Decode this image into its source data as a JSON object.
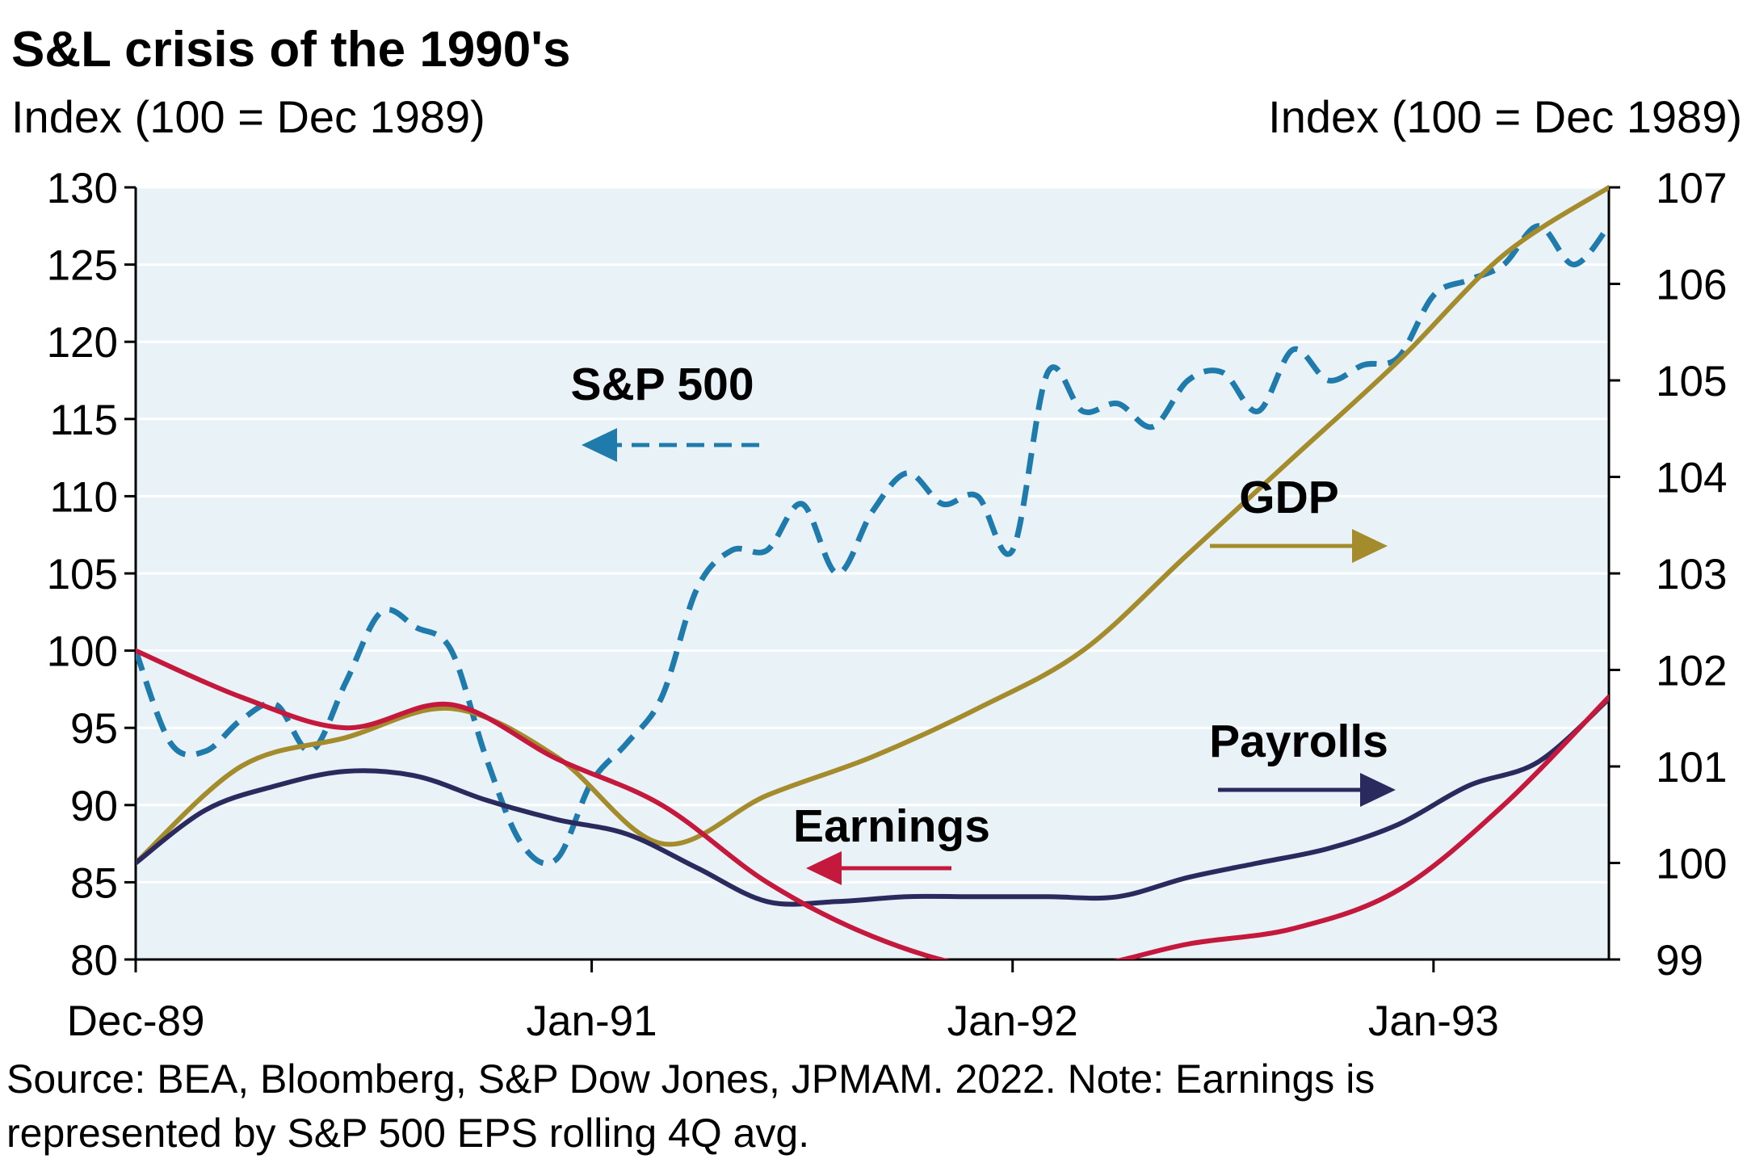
{
  "chart_data": {
    "type": "line",
    "title": "S&L crisis of the 1990's",
    "footnote_lines": [
      "Source: BEA, Bloomberg, S&P Dow Jones, JPMAM. 2022. Note: Earnings is",
      "represented by S&P 500 EPS rolling 4Q avg."
    ],
    "y_left": {
      "label": "Index (100 = Dec 1989)",
      "min": 80,
      "max": 130,
      "ticks": [
        80,
        85,
        90,
        95,
        100,
        105,
        110,
        115,
        120,
        125,
        130
      ]
    },
    "y_right": {
      "label": "Index (100 = Dec 1989)",
      "min": 99,
      "max": 107,
      "ticks": [
        99,
        100,
        101,
        102,
        103,
        104,
        105,
        106,
        107
      ]
    },
    "x_axis": {
      "start": "1989-12",
      "end": "1993-06",
      "tick_labels": [
        {
          "date": "1989-12",
          "label": "Dec-89"
        },
        {
          "date": "1991-01",
          "label": "Jan-91"
        },
        {
          "date": "1992-01",
          "label": "Jan-92"
        },
        {
          "date": "1993-01",
          "label": "Jan-93"
        }
      ]
    },
    "grid": "horizontal",
    "background": "#e9f2f6",
    "series": [
      {
        "name": "S&P 500",
        "axis": "left",
        "color": "#1f7bab",
        "style": "dashed",
        "arrow": "left",
        "points": [
          [
            "1989-12",
            100
          ],
          [
            "1990-01",
            94
          ],
          [
            "1990-02",
            93.5
          ],
          [
            "1990-03",
            95.5
          ],
          [
            "1990-04",
            96.5
          ],
          [
            "1990-05",
            93.5
          ],
          [
            "1990-06",
            98
          ],
          [
            "1990-07",
            102.5
          ],
          [
            "1990-08",
            101.5
          ],
          [
            "1990-09",
            100
          ],
          [
            "1990-10",
            93
          ],
          [
            "1990-11",
            87.5
          ],
          [
            "1990-12",
            86.5
          ],
          [
            "1991-01",
            91.5
          ],
          [
            "1991-02",
            94
          ],
          [
            "1991-03",
            97
          ],
          [
            "1991-04",
            104
          ],
          [
            "1991-05",
            106.5
          ],
          [
            "1991-06",
            106.5
          ],
          [
            "1991-07",
            109.5
          ],
          [
            "1991-08",
            105
          ],
          [
            "1991-09",
            109
          ],
          [
            "1991-10",
            111.5
          ],
          [
            "1991-11",
            109.5
          ],
          [
            "1991-12",
            110
          ],
          [
            "1992-01",
            106.5
          ],
          [
            "1992-02",
            118
          ],
          [
            "1992-03",
            115.5
          ],
          [
            "1992-04",
            116
          ],
          [
            "1992-05",
            114.5
          ],
          [
            "1992-06",
            117.5
          ],
          [
            "1992-07",
            118
          ],
          [
            "1992-08",
            115.5
          ],
          [
            "1992-09",
            119.5
          ],
          [
            "1992-10",
            117.5
          ],
          [
            "1992-11",
            118.5
          ],
          [
            "1992-12",
            119
          ],
          [
            "1993-01",
            123
          ],
          [
            "1993-02",
            124
          ],
          [
            "1993-03",
            125
          ],
          [
            "1993-04",
            127.5
          ],
          [
            "1993-05",
            125
          ],
          [
            "1993-06",
            127.5
          ]
        ]
      },
      {
        "name": "GDP",
        "axis": "right",
        "color": "#a48c2c",
        "style": "solid",
        "arrow": "right",
        "points": [
          [
            "1989-12",
            100
          ],
          [
            "1990-03",
            101
          ],
          [
            "1990-06",
            101.3
          ],
          [
            "1990-09",
            101.6
          ],
          [
            "1990-12",
            101.1
          ],
          [
            "1991-03",
            100.2
          ],
          [
            "1991-06",
            100.7
          ],
          [
            "1991-09",
            101.1
          ],
          [
            "1991-12",
            101.6
          ],
          [
            "1992-03",
            102.2
          ],
          [
            "1992-06",
            103.2
          ],
          [
            "1992-09",
            104.2
          ],
          [
            "1992-12",
            105.2
          ],
          [
            "1993-03",
            106.3
          ],
          [
            "1993-06",
            107
          ]
        ]
      },
      {
        "name": "Payrolls",
        "axis": "right",
        "color": "#2b2a5e",
        "style": "solid",
        "arrow": "right",
        "points": [
          [
            "1989-12",
            100
          ],
          [
            "1990-02",
            100.55
          ],
          [
            "1990-04",
            100.8
          ],
          [
            "1990-06",
            100.95
          ],
          [
            "1990-08",
            100.9
          ],
          [
            "1990-10",
            100.65
          ],
          [
            "1990-12",
            100.45
          ],
          [
            "1991-02",
            100.3
          ],
          [
            "1991-04",
            99.95
          ],
          [
            "1991-06",
            99.6
          ],
          [
            "1991-08",
            99.6
          ],
          [
            "1991-10",
            99.65
          ],
          [
            "1991-12",
            99.65
          ],
          [
            "1992-02",
            99.65
          ],
          [
            "1992-04",
            99.65
          ],
          [
            "1992-06",
            99.85
          ],
          [
            "1992-08",
            100
          ],
          [
            "1992-10",
            100.15
          ],
          [
            "1992-12",
            100.4
          ],
          [
            "1993-02",
            100.8
          ],
          [
            "1993-04",
            101.05
          ],
          [
            "1993-06",
            101.7
          ]
        ]
      },
      {
        "name": "Earnings",
        "axis": "left",
        "color": "#c4183c",
        "style": "solid",
        "arrow": "left",
        "points": [
          [
            "1989-12",
            100
          ],
          [
            "1990-03",
            97
          ],
          [
            "1990-06",
            95
          ],
          [
            "1990-09",
            96.5
          ],
          [
            "1990-12",
            93
          ],
          [
            "1991-03",
            90
          ],
          [
            "1991-06",
            85
          ],
          [
            "1991-09",
            81.5
          ],
          [
            "1991-12",
            79.5
          ],
          [
            "1992-03",
            79.5
          ],
          [
            "1992-06",
            81
          ],
          [
            "1992-09",
            82
          ],
          [
            "1992-12",
            84.5
          ],
          [
            "1993-03",
            90
          ],
          [
            "1993-06",
            97
          ]
        ]
      }
    ],
    "annotations": [
      {
        "text": "S&P 500",
        "series": "S&P 500"
      },
      {
        "text": "GDP",
        "series": "GDP"
      },
      {
        "text": "Payrolls",
        "series": "Payrolls"
      },
      {
        "text": "Earnings",
        "series": "Earnings"
      }
    ]
  }
}
